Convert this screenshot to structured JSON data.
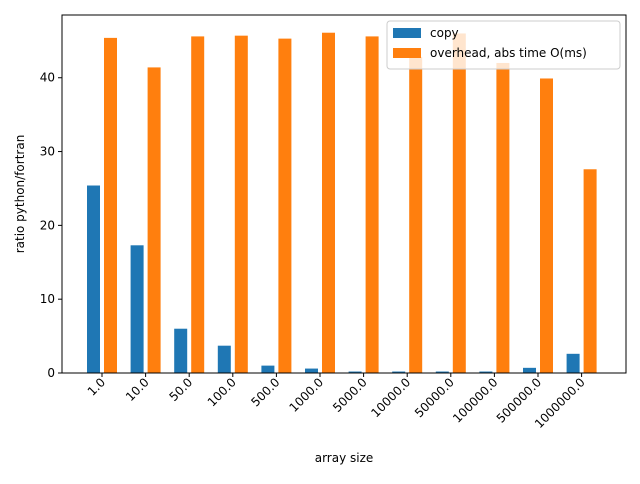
{
  "chart_data": {
    "type": "bar",
    "xlabel": "array size",
    "ylabel": "ratio python/fortran",
    "categories": [
      "1.0",
      "10.0",
      "50.0",
      "100.0",
      "500.0",
      "1000.0",
      "5000.0",
      "10000.0",
      "50000.0",
      "100000.0",
      "500000.0",
      "1000000.0"
    ],
    "ylim": [
      0,
      48.5
    ],
    "yticks": [
      0,
      10,
      20,
      30,
      40
    ],
    "grid": false,
    "legend_position": "top-right",
    "series": [
      {
        "name": "copy",
        "color": "#1f77b4",
        "values": [
          25.4,
          17.3,
          6.0,
          3.7,
          1.0,
          0.6,
          0.2,
          0.2,
          0.2,
          0.2,
          0.7,
          2.6
        ]
      },
      {
        "name": "overhead, abs time O(ms)",
        "color": "#ff7f0e",
        "values": [
          45.4,
          41.4,
          45.6,
          45.7,
          45.3,
          46.1,
          45.6,
          42.8,
          46.0,
          42.0,
          39.9,
          27.6
        ]
      }
    ]
  }
}
